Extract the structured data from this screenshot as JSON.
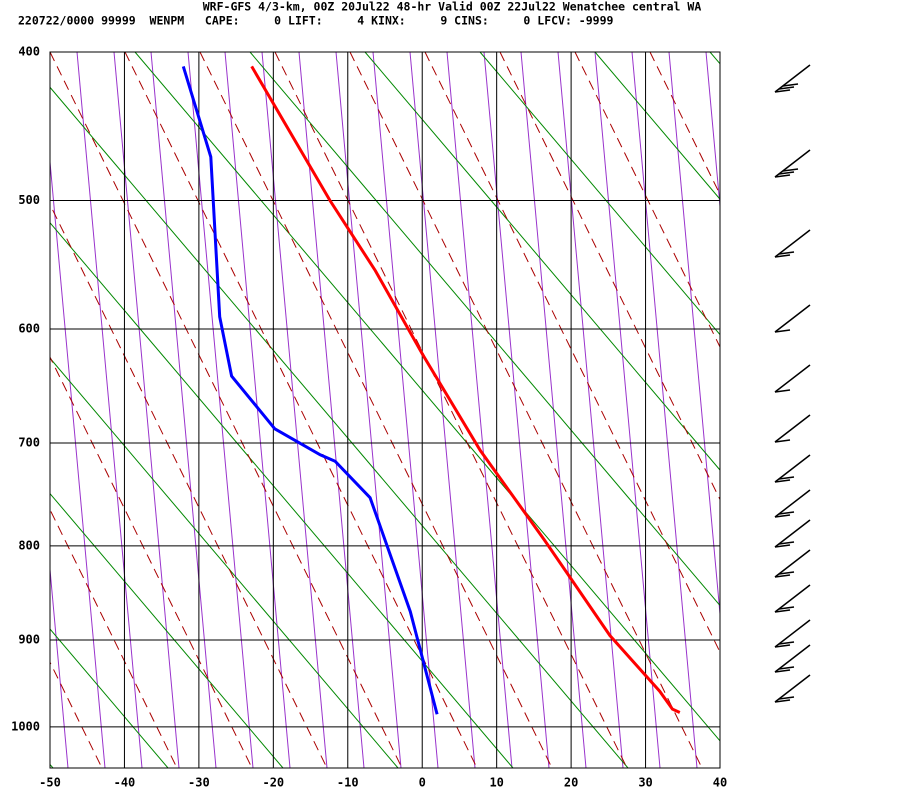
{
  "chart_data": {
    "type": "skewt",
    "title": "WRF-GFS 4/3-km, 00Z 20Jul22 48-hr Valid 00Z 22Jul22 Wenatchee central WA",
    "subtitle": "220722/0000 99999  WENPM   CAPE:     0 LIFT:     4 KINX:     9 CINS:     0 LFCV: -9999",
    "xlim": [
      -50,
      40
    ],
    "xticks": [
      -50,
      -40,
      -30,
      -20,
      -10,
      0,
      10,
      20,
      30,
      40
    ],
    "ylim": [
      400,
      1050
    ],
    "yticks": [
      400,
      500,
      600,
      700,
      800,
      900,
      1000
    ],
    "grid": true,
    "series": [
      {
        "color": "#ff0000",
        "x": [
          -22.9,
          -12.4,
          -6.3,
          0.1,
          7.8,
          16.5,
          25.2,
          31.9,
          33.6,
          34.6
        ],
        "values": [
          409,
          500,
          553,
          622,
          707,
          795,
          895,
          958,
          979,
          983
        ]
      },
      {
        "color": "#0000ff",
        "x": [
          -32.1,
          -28.4,
          -27.2,
          -25.6,
          -19.8,
          -13.7,
          -11.7,
          -7,
          -1.6,
          2.0
        ],
        "values": [
          409,
          469,
          590,
          640,
          687,
          711,
          717,
          752,
          869,
          985
        ]
      }
    ]
  }
}
